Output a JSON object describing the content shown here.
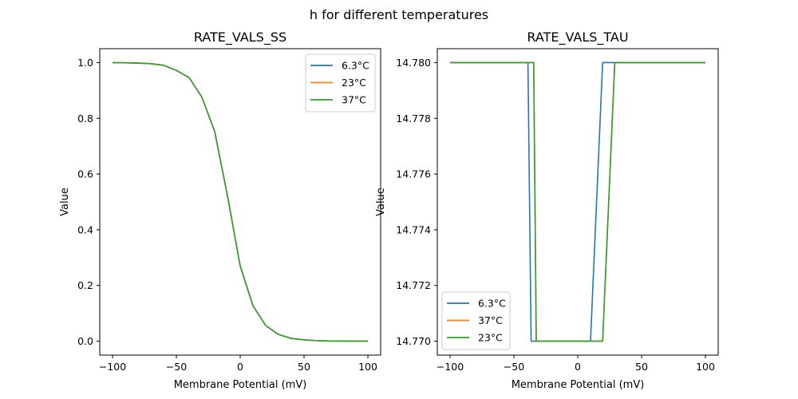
{
  "figure": {
    "suptitle": "h for different temperatures"
  },
  "colors": {
    "blue": "#1f77b4",
    "orange": "#ff7f0e",
    "green": "#2ca02c"
  },
  "chart_data": [
    {
      "type": "line",
      "title": "RATE_VALS_SS",
      "xlabel": "Membrane Potential (mV)",
      "ylabel": "Value",
      "xlim": [
        -110,
        110
      ],
      "ylim": [
        -0.05,
        1.05
      ],
      "xticks": [
        -100,
        -50,
        0,
        50,
        100
      ],
      "xtick_labels": [
        "−100",
        "−50",
        "0",
        "50",
        "100"
      ],
      "yticks": [
        0.0,
        0.2,
        0.4,
        0.6,
        0.8,
        1.0
      ],
      "ytick_labels": [
        "0.0",
        "0.2",
        "0.4",
        "0.6",
        "0.8",
        "1.0"
      ],
      "grid": false,
      "legend_position": "upper right",
      "x": [
        -100,
        -90,
        -80,
        -70,
        -60,
        -50,
        -40,
        -30,
        -20,
        -10,
        0,
        10,
        20,
        30,
        40,
        50,
        60,
        70,
        80,
        90,
        100
      ],
      "series": [
        {
          "name": "6.3°C",
          "color": "#1f77b4",
          "values": [
            0.9996,
            0.9993,
            0.9983,
            0.996,
            0.9904,
            0.972,
            0.946,
            0.876,
            0.753,
            0.523,
            0.27,
            0.127,
            0.056,
            0.024,
            0.01,
            0.0045,
            0.0019,
            0.0008,
            0.0004,
            0.0002,
            0.0001
          ]
        },
        {
          "name": "23°C",
          "color": "#ff7f0e",
          "values": [
            0.9996,
            0.9993,
            0.9983,
            0.996,
            0.9904,
            0.972,
            0.946,
            0.876,
            0.753,
            0.523,
            0.27,
            0.127,
            0.056,
            0.024,
            0.01,
            0.0045,
            0.0019,
            0.0008,
            0.0004,
            0.0002,
            0.0001
          ]
        },
        {
          "name": "37°C",
          "color": "#2ca02c",
          "values": [
            0.9996,
            0.9993,
            0.9983,
            0.996,
            0.9904,
            0.972,
            0.946,
            0.876,
            0.753,
            0.523,
            0.27,
            0.127,
            0.056,
            0.024,
            0.01,
            0.0045,
            0.0019,
            0.0008,
            0.0004,
            0.0002,
            0.0001
          ]
        }
      ]
    },
    {
      "type": "line",
      "title": "RATE_VALS_TAU",
      "xlabel": "Membrane Potential (mV)",
      "ylabel": "Value",
      "xlim": [
        -110,
        110
      ],
      "ylim": [
        14.7695,
        14.7805
      ],
      "xticks": [
        -100,
        -50,
        0,
        50,
        100
      ],
      "xtick_labels": [
        "−100",
        "−50",
        "0",
        "50",
        "100"
      ],
      "yticks": [
        14.77,
        14.772,
        14.774,
        14.776,
        14.778,
        14.78
      ],
      "ytick_labels": [
        "14.770",
        "14.772",
        "14.774",
        "14.776",
        "14.778",
        "14.780"
      ],
      "grid": false,
      "legend_position": "lower left",
      "series": [
        {
          "name": "6.3°C",
          "color": "#1f77b4",
          "points": [
            [
              -100,
              14.78
            ],
            [
              -39,
              14.78
            ],
            [
              -36.5,
              14.77
            ],
            [
              10,
              14.77
            ],
            [
              19.5,
              14.78
            ],
            [
              100,
              14.78
            ]
          ]
        },
        {
          "name": "37°C",
          "color": "#ff7f0e",
          "points": [
            [
              -100,
              14.78
            ],
            [
              -34.5,
              14.78
            ],
            [
              -32.5,
              14.77
            ],
            [
              19.5,
              14.77
            ],
            [
              29,
              14.78
            ],
            [
              100,
              14.78
            ]
          ]
        },
        {
          "name": "23°C",
          "color": "#2ca02c",
          "points": [
            [
              -100,
              14.78
            ],
            [
              -34.5,
              14.78
            ],
            [
              -32.5,
              14.77
            ],
            [
              19.5,
              14.77
            ],
            [
              29,
              14.78
            ],
            [
              100,
              14.78
            ]
          ]
        }
      ]
    }
  ]
}
